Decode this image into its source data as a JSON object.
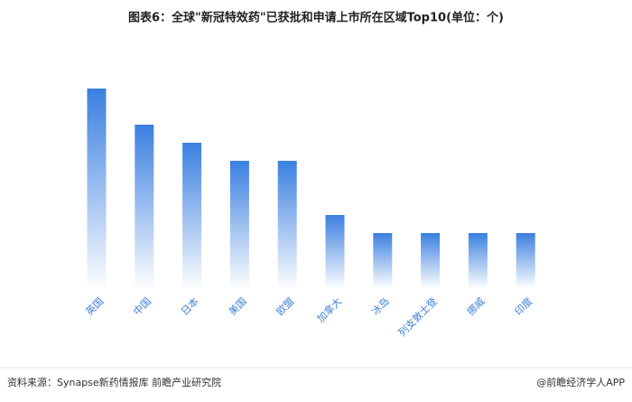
{
  "chart_data": {
    "type": "bar",
    "title": "图表6：全球\"新冠特效药\"已获批和申请上市所在区域Top10(单位：个)",
    "categories": [
      "英国",
      "中国",
      "日本",
      "美国",
      "欧盟",
      "加拿大",
      "冰岛",
      "列支敦士登",
      "挪威",
      "印度"
    ],
    "values": [
      11,
      9,
      8,
      7,
      7,
      4,
      3,
      3,
      3,
      3
    ],
    "color": "#3a7fe0",
    "source": "资料来源：Synapse新药情报库 前瞻产业研究院",
    "credit": "@前瞻经济学人APP"
  }
}
